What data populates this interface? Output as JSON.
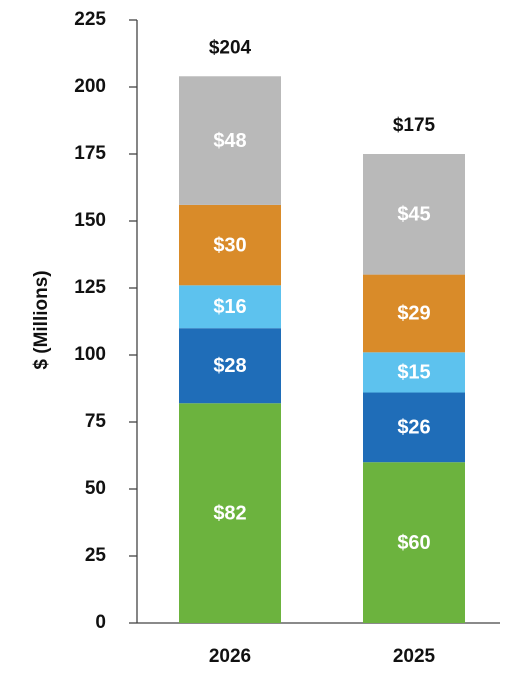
{
  "chart_data": {
    "type": "stacked_bar",
    "y_label": "$ (Millions)",
    "categories": [
      "2026",
      "2025"
    ],
    "series": [
      {
        "color": "#6cb33e",
        "values": [
          82,
          60
        ],
        "value_labels": [
          "$82",
          "$60"
        ]
      },
      {
        "color": "#1f6db8",
        "values": [
          28,
          26
        ],
        "value_labels": [
          "$28",
          "$26"
        ]
      },
      {
        "color": "#5dc2ee",
        "values": [
          16,
          15
        ],
        "value_labels": [
          "$16",
          "$15"
        ]
      },
      {
        "color": "#d98b29",
        "values": [
          30,
          29
        ],
        "value_labels": [
          "$30",
          "$29"
        ]
      },
      {
        "color": "#b9b9b9",
        "values": [
          48,
          45
        ],
        "value_labels": [
          "$48",
          "$45"
        ]
      }
    ],
    "totals": {
      "values": [
        204,
        175
      ],
      "value_labels": [
        "$204",
        "$175"
      ]
    },
    "ylim": [
      0,
      225
    ],
    "yticks": [
      0,
      25,
      50,
      75,
      100,
      125,
      150,
      175,
      200,
      225
    ],
    "grid": false
  }
}
